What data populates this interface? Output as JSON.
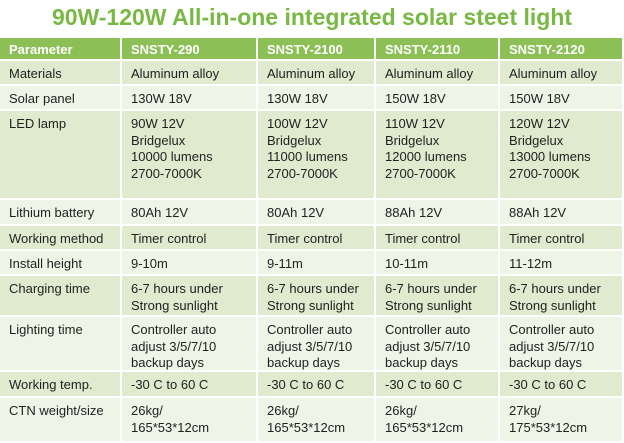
{
  "title": "90W-120W All-in-one integrated solar steet light",
  "table": {
    "header": [
      "Parameter",
      "SNSTY-290",
      "SNSTY-2100",
      "SNSTY-2110",
      "SNSTY-2120"
    ],
    "rows": [
      [
        [
          "Materials"
        ],
        [
          "Aluminum alloy"
        ],
        [
          "Aluminum alloy"
        ],
        [
          "Aluminum alloy"
        ],
        [
          "Aluminum alloy"
        ]
      ],
      [
        [
          "Solar panel"
        ],
        [
          "130W 18V"
        ],
        [
          "130W 18V"
        ],
        [
          "150W 18V"
        ],
        [
          "150W 18V"
        ]
      ],
      [
        [
          "LED lamp"
        ],
        [
          "90W 12V",
          "Bridgelux",
          "10000 lumens",
          "2700-7000K"
        ],
        [
          "100W 12V",
          "Bridgelux",
          "11000 lumens",
          "2700-7000K"
        ],
        [
          "110W 12V",
          "Bridgelux",
          "12000 lumens",
          "2700-7000K"
        ],
        [
          "120W 12V",
          "Bridgelux",
          "13000 lumens",
          "2700-7000K"
        ]
      ],
      [
        [
          "Lithium battery"
        ],
        [
          "80Ah 12V"
        ],
        [
          "80Ah 12V"
        ],
        [
          "88Ah 12V"
        ],
        [
          "88Ah 12V"
        ]
      ],
      [
        [
          "Working method"
        ],
        [
          "Timer control"
        ],
        [
          "Timer control"
        ],
        [
          "Timer control"
        ],
        [
          "Timer control"
        ]
      ],
      [
        [
          "Install height"
        ],
        [
          "9-10m"
        ],
        [
          "9-11m"
        ],
        [
          "10-11m"
        ],
        [
          "11-12m"
        ]
      ],
      [
        [
          "Charging time"
        ],
        [
          "6-7 hours under",
          "Strong sunlight"
        ],
        [
          "6-7 hours under",
          "Strong sunlight"
        ],
        [
          "6-7 hours under",
          "Strong sunlight"
        ],
        [
          "6-7 hours under",
          "Strong sunlight"
        ]
      ],
      [
        [
          "Lighting time"
        ],
        [
          "Controller auto",
          "adjust 3/5/7/10",
          "backup days"
        ],
        [
          "Controller auto",
          "adjust 3/5/7/10",
          "backup days"
        ],
        [
          "Controller auto",
          "adjust 3/5/7/10",
          "backup days"
        ],
        [
          "Controller auto",
          "adjust 3/5/7/10",
          "backup days"
        ]
      ],
      [
        [
          "Working temp."
        ],
        [
          "-30 C to 60 C"
        ],
        [
          "-30 C to 60 C"
        ],
        [
          "-30 C to 60 C"
        ],
        [
          "-30 C to 60 C"
        ]
      ],
      [
        [
          "CTN weight/size"
        ],
        [
          "26kg/",
          "165*53*12cm"
        ],
        [
          "26kg/",
          "165*53*12cm"
        ],
        [
          "26kg/",
          "165*53*12cm"
        ],
        [
          "27kg/",
          "175*53*12cm"
        ]
      ]
    ]
  }
}
